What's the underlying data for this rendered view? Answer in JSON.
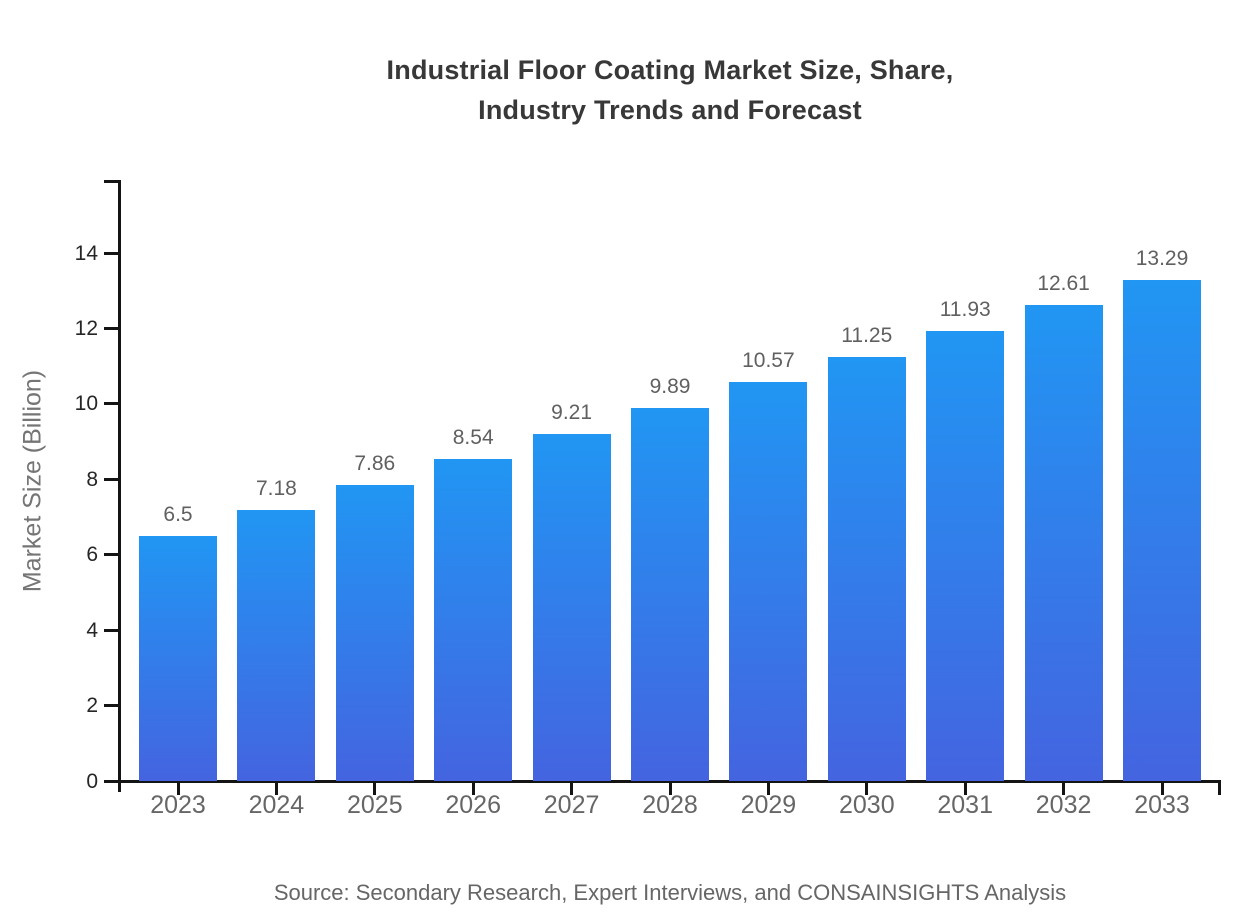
{
  "title": {
    "line1": "Industrial Floor Coating Market Size, Share,",
    "line2": "Industry Trends and Forecast"
  },
  "source_note": "Source: Secondary Research, Expert Interviews, and CONSAINSIGHTS Analysis",
  "chart_data": {
    "type": "bar",
    "title": "Industrial Floor Coating Market Size, Share, Industry Trends and Forecast",
    "xlabel": "",
    "ylabel": "Market Size (Billion)",
    "categories": [
      "2023",
      "2024",
      "2025",
      "2026",
      "2027",
      "2028",
      "2029",
      "2030",
      "2031",
      "2032",
      "2033"
    ],
    "values": [
      6.5,
      7.18,
      7.86,
      8.54,
      9.21,
      9.89,
      10.57,
      11.25,
      11.93,
      12.61,
      13.29
    ],
    "value_labels": [
      "6.5",
      "7.18",
      "7.86",
      "8.54",
      "9.21",
      "9.89",
      "10.57",
      "11.25",
      "11.93",
      "12.61",
      "13.29"
    ],
    "ylim": [
      0,
      16
    ],
    "yticks": [
      0,
      2,
      4,
      6,
      8,
      10,
      12,
      14
    ],
    "grid": false,
    "legend": "none",
    "bar_color_top": "#2196f3",
    "bar_color_bottom": "#4464e0",
    "axis_color": "#141414",
    "label_color": "#666666"
  }
}
